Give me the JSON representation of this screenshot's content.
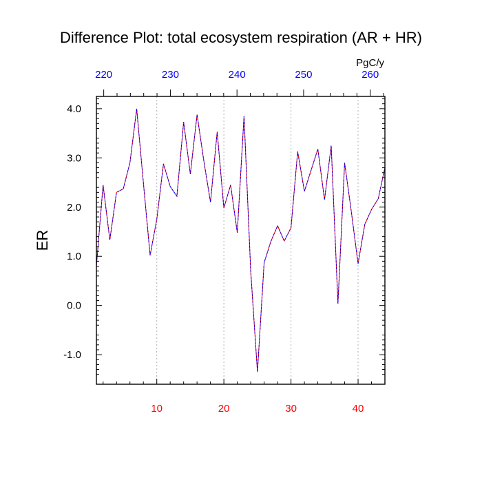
{
  "chart_data": {
    "type": "line",
    "title": "Difference Plot: total ecosystem respiration (AR + HR)",
    "units_label": "PgC/y",
    "ylabel": "ER",
    "ylim": [
      -1.6,
      4.25
    ],
    "xlim": [
      1,
      44
    ],
    "top_xlim": [
      218.9,
      262.2
    ],
    "yticks": [
      -1.0,
      0.0,
      1.0,
      2.0,
      3.0,
      4.0
    ],
    "ytick_labels": [
      "-1.0",
      "0.0",
      "1.0",
      "2.0",
      "3.0",
      "4.0"
    ],
    "xticks_bottom": [
      10,
      20,
      30,
      40
    ],
    "xticks_bottom_labels": [
      "10",
      "20",
      "30",
      "40"
    ],
    "xticks_top": [
      220,
      230,
      240,
      250,
      260
    ],
    "xticks_top_labels": [
      "220",
      "230",
      "240",
      "250",
      "260"
    ],
    "grid_x": [
      10,
      20,
      30,
      40
    ],
    "colors": {
      "bottom_axis": "#ff0000",
      "top_axis": "#0000ff",
      "line_a": "#ff0000",
      "line_b": "#0000ff"
    },
    "series": [
      {
        "x": [
          1,
          2,
          3,
          4,
          5,
          6,
          7,
          8,
          9,
          10,
          11,
          12,
          13,
          14,
          15,
          16,
          17,
          18,
          19,
          20,
          21,
          22,
          23,
          24,
          25,
          26,
          27,
          28,
          29,
          30,
          31,
          32,
          33,
          34,
          35,
          36,
          37,
          38,
          39,
          40,
          41,
          42,
          43,
          44
        ],
        "values": [
          0.8,
          2.45,
          1.33,
          2.3,
          2.37,
          2.9,
          4.0,
          2.5,
          1.02,
          1.75,
          2.88,
          2.42,
          2.22,
          3.73,
          2.67,
          3.88,
          2.95,
          2.1,
          3.53,
          1.98,
          2.45,
          1.48,
          3.85,
          0.7,
          -1.35,
          0.87,
          1.3,
          1.62,
          1.31,
          1.58,
          3.13,
          2.32,
          2.75,
          3.18,
          2.15,
          3.25,
          0.04,
          2.9,
          1.9,
          0.85,
          1.65,
          1.95,
          2.17,
          2.8
        ]
      }
    ]
  }
}
